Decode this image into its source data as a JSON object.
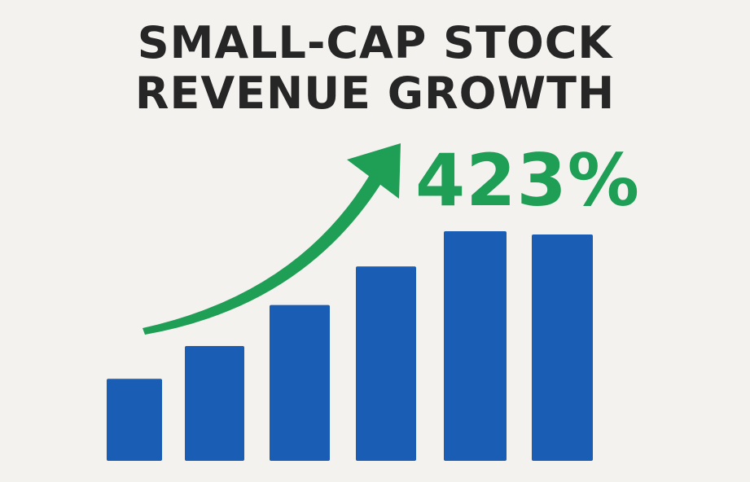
{
  "title_line1": "SMALL-CAP STOCK",
  "title_line2": "REVENUE GROWTH",
  "callout": "423%",
  "colors": {
    "background": "#f3f2ef",
    "bars": "#1a5db4",
    "accent": "#1f9e55",
    "title": "#262626"
  },
  "chart_data": {
    "type": "bar",
    "title": "SMALL-CAP STOCK REVENUE GROWTH",
    "annotation": "423%",
    "categories": [
      "",
      "",
      "",
      "",
      "",
      ""
    ],
    "values": [
      100,
      140,
      190,
      237,
      280,
      276
    ],
    "value_scale": "relative (bar heights; no axis printed)",
    "axes_visible": false,
    "grid": false,
    "legend": "none",
    "trend_arrow": "upward, green"
  }
}
